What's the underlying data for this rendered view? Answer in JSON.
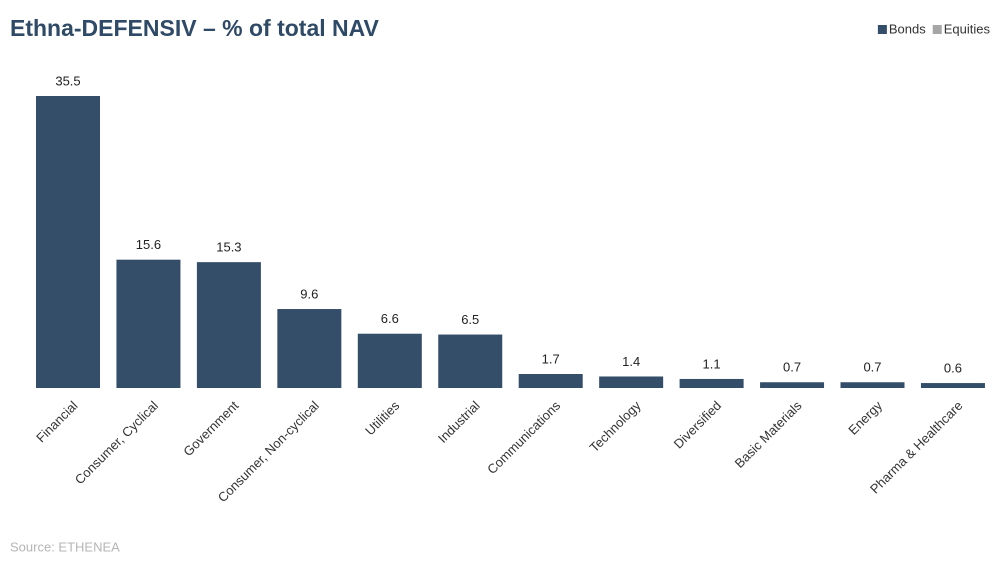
{
  "chart_data": {
    "type": "bar",
    "stacked": true,
    "title": "Ethna-DEFENSIV – % of total NAV",
    "source": "Source: ETHENEA",
    "legend": "top-right",
    "categories": [
      "Financial",
      "Consumer, Cyclical",
      "Government",
      "Consumer, Non-cyclical",
      "Utilities",
      "Industrial",
      "Communications",
      "Technology",
      "Diversified",
      "Basic Materials",
      "Energy",
      "Pharma & Healthcare"
    ],
    "series": [
      {
        "name": "Bonds",
        "color": "#344d68",
        "values": [
          35.5,
          15.6,
          15.3,
          9.6,
          6.6,
          6.5,
          1.7,
          1.4,
          1.1,
          0.7,
          0.7,
          0.6
        ]
      },
      {
        "name": "Equities",
        "color": "#a6a6a6",
        "values": [
          0,
          0,
          0,
          0,
          0,
          0,
          0,
          0,
          0,
          0,
          0,
          0
        ]
      }
    ]
  }
}
